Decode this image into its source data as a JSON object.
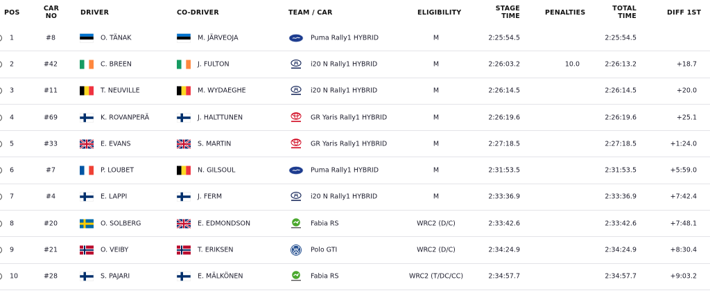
{
  "headers": {
    "pos": "POS",
    "car_no_1": "CAR",
    "car_no_2": "NO",
    "driver": "DRIVER",
    "co_driver": "CO-DRIVER",
    "team_car": "TEAM / CAR",
    "eligibility": "ELIGIBILITY",
    "stage_time_1": "STAGE",
    "stage_time_2": "TIME",
    "penalties": "PENALTIES",
    "total_time_1": "TOTAL",
    "total_time_2": "TIME",
    "diff_1st": "DIFF 1ST"
  },
  "rows": [
    {
      "pos": "1",
      "car_no": "#8",
      "driver": "O. TÄNAK",
      "driver_flag": "estonia",
      "co_driver": "M. JÄRVEOJA",
      "co_driver_flag": "estonia",
      "brand": "ford-logo",
      "team_car": "Puma Rally1 HYBRID",
      "eligibility": "M",
      "stage_time": "2:25:54.5",
      "penalties": "",
      "total_time": "2:25:54.5",
      "diff_1st": ""
    },
    {
      "pos": "2",
      "car_no": "#42",
      "driver": "C. BREEN",
      "driver_flag": "ireland",
      "co_driver": "J. FULTON",
      "co_driver_flag": "ireland",
      "brand": "hyundai-logo",
      "team_car": "i20 N Rally1 HYBRID",
      "eligibility": "M",
      "stage_time": "2:26:03.2",
      "penalties": "10.0",
      "total_time": "2:26:13.2",
      "diff_1st": "+18.7"
    },
    {
      "pos": "3",
      "car_no": "#11",
      "driver": "T. NEUVILLE",
      "driver_flag": "belgium",
      "co_driver": "M. WYDAEGHE",
      "co_driver_flag": "belgium",
      "brand": "hyundai-logo",
      "team_car": "i20 N Rally1 HYBRID",
      "eligibility": "M",
      "stage_time": "2:26:14.5",
      "penalties": "",
      "total_time": "2:26:14.5",
      "diff_1st": "+20.0"
    },
    {
      "pos": "4",
      "car_no": "#69",
      "driver": "K. ROVANPERÄ",
      "driver_flag": "finland",
      "co_driver": "J. HALTTUNEN",
      "co_driver_flag": "finland",
      "brand": "toyota-logo",
      "team_car": "GR Yaris Rally1 HYBRID",
      "eligibility": "M",
      "stage_time": "2:26:19.6",
      "penalties": "",
      "total_time": "2:26:19.6",
      "diff_1st": "+25.1"
    },
    {
      "pos": "5",
      "car_no": "#33",
      "driver": "E. EVANS",
      "driver_flag": "uk",
      "co_driver": "S. MARTIN",
      "co_driver_flag": "uk",
      "brand": "toyota-logo",
      "team_car": "GR Yaris Rally1 HYBRID",
      "eligibility": "M",
      "stage_time": "2:27:18.5",
      "penalties": "",
      "total_time": "2:27:18.5",
      "diff_1st": "+1:24.0"
    },
    {
      "pos": "6",
      "car_no": "#7",
      "driver": "P. LOUBET",
      "driver_flag": "france",
      "co_driver": "N. GILSOUL",
      "co_driver_flag": "belgium",
      "brand": "ford-logo",
      "team_car": "Puma Rally1 HYBRID",
      "eligibility": "M",
      "stage_time": "2:31:53.5",
      "penalties": "",
      "total_time": "2:31:53.5",
      "diff_1st": "+5:59.0"
    },
    {
      "pos": "7",
      "car_no": "#4",
      "driver": "E. LAPPI",
      "driver_flag": "finland",
      "co_driver": "J. FERM",
      "co_driver_flag": "finland",
      "brand": "hyundai-logo",
      "team_car": "i20 N Rally1 HYBRID",
      "eligibility": "M",
      "stage_time": "2:33:36.9",
      "penalties": "",
      "total_time": "2:33:36.9",
      "diff_1st": "+7:42.4"
    },
    {
      "pos": "8",
      "car_no": "#20",
      "driver": "O. SOLBERG",
      "driver_flag": "sweden",
      "co_driver": "E. EDMONDSON",
      "co_driver_flag": "uk",
      "brand": "skoda-logo",
      "team_car": "Fabia RS",
      "eligibility": "WRC2 (D/C)",
      "stage_time": "2:33:42.6",
      "penalties": "",
      "total_time": "2:33:42.6",
      "diff_1st": "+7:48.1"
    },
    {
      "pos": "9",
      "car_no": "#21",
      "driver": "O. VEIBY",
      "driver_flag": "norway",
      "co_driver": "T. ERIKSEN",
      "co_driver_flag": "norway",
      "brand": "vw-logo",
      "team_car": "Polo GTI",
      "eligibility": "WRC2 (D/C)",
      "stage_time": "2:34:24.9",
      "penalties": "",
      "total_time": "2:34:24.9",
      "diff_1st": "+8:30.4"
    },
    {
      "pos": "10",
      "car_no": "#28",
      "driver": "S. PAJARI",
      "driver_flag": "finland",
      "co_driver": "E. MÄLKÖNEN",
      "co_driver_flag": "finland",
      "brand": "skoda-logo",
      "team_car": "Fabia RS",
      "eligibility": "WRC2 (T/DC/CC)",
      "stage_time": "2:34:57.7",
      "penalties": "",
      "total_time": "2:34:57.7",
      "diff_1st": "+9:03.2"
    }
  ],
  "colors": {
    "row_divider": "#e3e3e8",
    "text": "#1b1b2b",
    "ford_blue": "#1d3c8f",
    "toyota_red": "#d0021b",
    "skoda_green": "#4ba82e",
    "vw_blue": "#1e4a8c",
    "hyundai_navy": "#1a2a5c"
  }
}
